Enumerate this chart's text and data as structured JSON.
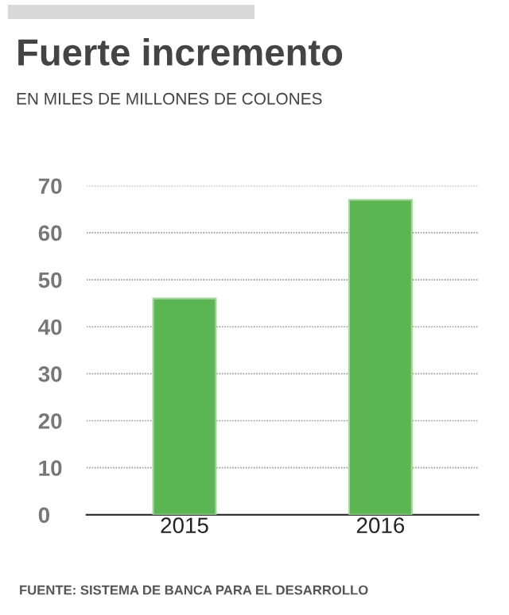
{
  "chart_data": {
    "type": "bar",
    "title": "Fuerte incremento",
    "subtitle": "EN MILES DE MILLONES DE COLONES",
    "categories": [
      "2015",
      "2016"
    ],
    "values": [
      46,
      67
    ],
    "color": "#5ab552",
    "ylim": [
      0,
      70
    ],
    "yticks": [
      0,
      10,
      20,
      30,
      40,
      50,
      60,
      70
    ],
    "grid": "y",
    "annotations": [
      "FUENTE: SISTEMA DE BANCA PARA EL DESARROLLO"
    ]
  }
}
